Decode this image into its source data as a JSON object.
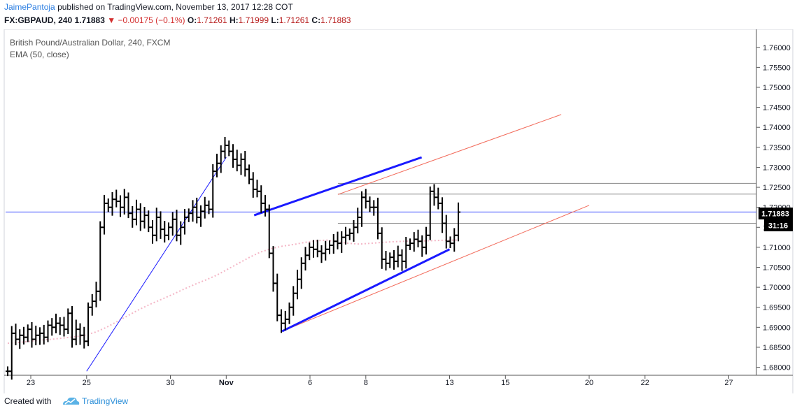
{
  "header": {
    "author": "JaimePantoja",
    "published_text": "published on TradingView.com, November 13, 2017 12:28 COT",
    "symbol": "FX:GBPAUD, 240",
    "last": "1.71883",
    "change": "−0.00175 (−0.1%)",
    "open_label": "O:",
    "open": "1.71261",
    "high_label": "H:",
    "high": "1.71999",
    "low_label": "L:",
    "low": "1.71261",
    "close_label": "C:",
    "close": "1.71883"
  },
  "legend": {
    "instrument": "British Pound/Australian Dollar, 240, FXCM",
    "indicator": "EMA (50, close)"
  },
  "price_badge": "1.71883",
  "countdown_badge": "31:16",
  "footer": {
    "created_with": "Created with",
    "brand": "TradingView"
  },
  "colors": {
    "candle": "#000000",
    "ema": "#f4b6c6",
    "trend_blue": "#1a1aff",
    "channel_red": "#f26b5b",
    "horizontal": "#888888",
    "price_line": "#3f51ff",
    "badge_bg": "#000000",
    "brand": "#2a8ed8"
  },
  "chart_data": {
    "type": "ohlc",
    "ylim": [
      1.678,
      1.7645
    ],
    "y_ticks": [
      "1.68000",
      "1.68500",
      "1.69000",
      "1.69500",
      "1.70000",
      "1.70500",
      "1.71000",
      "1.71500",
      "1.72000",
      "1.72500",
      "1.73000",
      "1.73500",
      "1.74000",
      "1.74500",
      "1.75000",
      "1.75500",
      "1.76000"
    ],
    "y_tick_values": [
      1.68,
      1.685,
      1.69,
      1.695,
      1.7,
      1.705,
      1.71,
      1.715,
      1.72,
      1.725,
      1.73,
      1.735,
      1.74,
      1.745,
      1.75,
      1.755,
      1.76
    ],
    "x_ticks": [
      {
        "label": "23",
        "date": "2017-10-23"
      },
      {
        "label": "25",
        "date": "2017-10-25"
      },
      {
        "label": "30",
        "date": "2017-10-30"
      },
      {
        "label": "Nov",
        "date": "2017-11-01"
      },
      {
        "label": "6",
        "date": "2017-11-06"
      },
      {
        "label": "8",
        "date": "2017-11-08"
      },
      {
        "label": "13",
        "date": "2017-11-13"
      },
      {
        "label": "15",
        "date": "2017-11-15"
      },
      {
        "label": "20",
        "date": "2017-11-20"
      },
      {
        "label": "22",
        "date": "2017-11-22"
      },
      {
        "label": "27",
        "date": "2017-11-27"
      }
    ],
    "last_price": 1.71883,
    "price_series": [
      1.679,
      1.6885,
      1.687,
      1.688,
      1.6875,
      1.6895,
      1.687,
      1.688,
      1.6885,
      1.6875,
      1.6905,
      1.69,
      1.691,
      1.6905,
      1.6895,
      1.6935,
      1.687,
      1.6895,
      1.688,
      1.6865,
      1.695,
      1.6965,
      1.699,
      1.715,
      1.721,
      1.72,
      1.722,
      1.7215,
      1.72,
      1.7225,
      1.7185,
      1.717,
      1.7195,
      1.7165,
      1.718,
      1.715,
      1.713,
      1.7175,
      1.7145,
      1.713,
      1.715,
      1.717,
      1.713,
      1.715,
      1.7175,
      1.7185,
      1.72,
      1.7175,
      1.719,
      1.7205,
      1.7195,
      1.729,
      1.731,
      1.734,
      1.7355,
      1.734,
      1.732,
      1.7305,
      1.732,
      1.7295,
      1.727,
      1.7245,
      1.724,
      1.721,
      1.7195,
      1.7085,
      1.701,
      1.693,
      1.691,
      1.692,
      1.695,
      1.6985,
      1.702,
      1.706,
      1.708,
      1.71,
      1.7095,
      1.709,
      1.7085,
      1.7095,
      1.7105,
      1.7115,
      1.711,
      1.7125,
      1.713,
      1.7135,
      1.715,
      1.7175,
      1.7225,
      1.7215,
      1.72,
      1.72,
      1.7135,
      1.707,
      1.706,
      1.7075,
      1.7065,
      1.708,
      1.7065,
      1.7105,
      1.711,
      1.712,
      1.7115,
      1.71,
      1.713,
      1.724,
      1.7225,
      1.721,
      1.716,
      1.7115,
      1.711,
      1.713,
      1.7188
    ],
    "ema_50": [
      1.686,
      1.6862,
      1.6865,
      1.6868,
      1.687,
      1.6873,
      1.6876,
      1.688,
      1.6888,
      1.69,
      1.6915,
      1.693,
      1.6945,
      1.6958,
      1.697,
      1.6982,
      1.6995,
      1.7007,
      1.7018,
      1.703,
      1.7045,
      1.706,
      1.7075,
      1.7088,
      1.7097,
      1.7103,
      1.7107,
      1.7112,
      1.7116,
      1.7118,
      1.7114,
      1.711,
      1.7108,
      1.711,
      1.7112,
      1.7114,
      1.7115,
      1.7116,
      1.7116,
      1.7117,
      1.7118,
      1.7118
    ],
    "overlays": {
      "blue_uptrend": {
        "from": {
          "date": "2017-10-25",
          "price": 1.679
        },
        "to": {
          "date": "2017-11-01",
          "price": 1.7325
        }
      },
      "blue_channel_top": {
        "from": {
          "date": "2017-11-02",
          "price": 1.718
        },
        "to": {
          "date": "2017-11-10",
          "price": 1.7325
        }
      },
      "blue_channel_bottom": {
        "from": {
          "date": "2017-11-03",
          "price": 1.689
        },
        "to": {
          "date": "2017-11-13",
          "price": 1.7095
        }
      },
      "red_channel_top": {
        "from": {
          "date": "2017-11-07",
          "price": 1.7232
        },
        "to": {
          "date": "2017-11-17",
          "price": 1.7432
        }
      },
      "red_channel_bottom": {
        "from": {
          "date": "2017-11-03",
          "price": 1.689
        },
        "to": {
          "date": "2017-11-19",
          "price": 1.7205
        }
      },
      "horizontal_levels": [
        1.726,
        1.7233,
        1.716
      ]
    }
  }
}
